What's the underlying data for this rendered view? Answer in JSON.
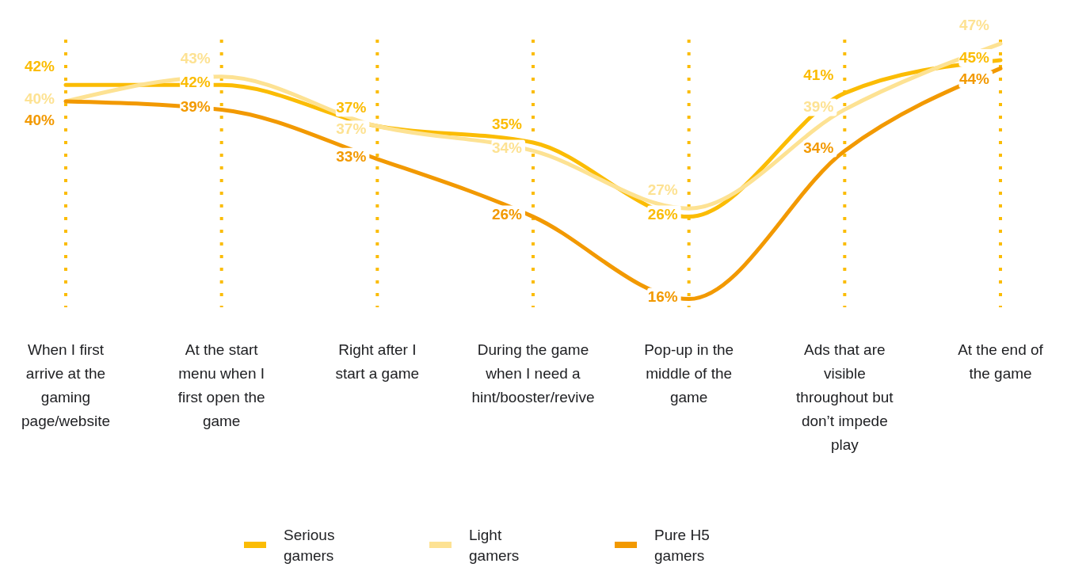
{
  "chart_data": {
    "type": "line",
    "categories": [
      "When I first arrive at the gaming page/website",
      "At the start menu when I first open the game",
      "Right after I start a game",
      "During the game when I need a hint/booster/revive",
      "Pop-up in the middle of the game",
      "Ads that are visible throughout but don’t impede play",
      "At the end of the game"
    ],
    "series": [
      {
        "name": "Serious gamers",
        "color": "#fbbc04",
        "values": [
          42,
          42,
          37,
          35,
          26,
          41,
          45
        ],
        "value_labels": [
          "42%",
          "42%",
          "37%",
          "35%",
          "26%",
          "41%",
          "45%"
        ]
      },
      {
        "name": "Light gamers",
        "color": "#fde293",
        "values": [
          40,
          43,
          37,
          34,
          27,
          39,
          47
        ],
        "value_labels": [
          "40%",
          "43%",
          "37%",
          "34%",
          "27%",
          "39%",
          "47%"
        ]
      },
      {
        "name": "Pure H5 gamers",
        "color": "#f29900",
        "values": [
          40,
          39,
          33,
          26,
          16,
          34,
          44
        ],
        "value_labels": [
          "40%",
          "39%",
          "33%",
          "26%",
          "16%",
          "34%",
          "44%"
        ]
      }
    ],
    "ylim": [
      15,
      47.5
    ],
    "grid": "x",
    "legend": "bottom",
    "line_style": "solid"
  }
}
